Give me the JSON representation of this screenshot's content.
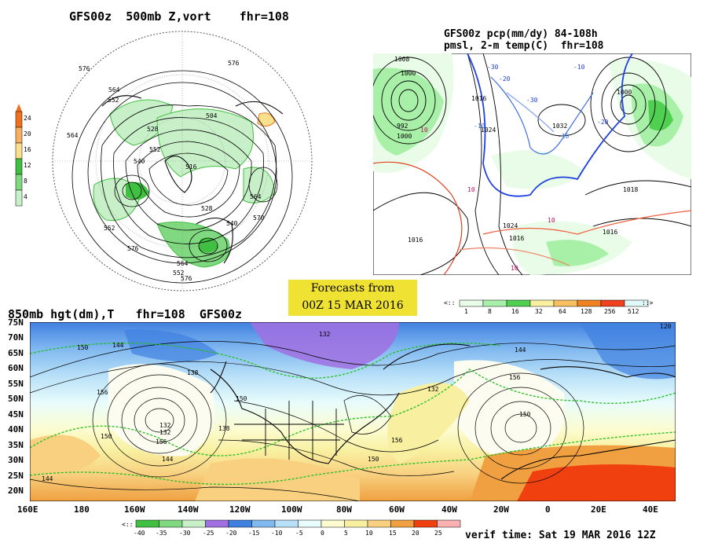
{
  "panel_500mb": {
    "title": "GFS00z  500mb Z,vort    fhr=108",
    "contour_labels": [
      "576",
      "564",
      "552",
      "564",
      "528",
      "540",
      "504",
      "516",
      "552",
      "528",
      "540",
      "552",
      "576",
      "564",
      "576",
      "564",
      "552",
      "570",
      "576"
    ],
    "scale_labels": [
      "24",
      "20",
      "16",
      "12",
      "8",
      "4"
    ],
    "scale_colors": [
      "#f07020",
      "#f8b060",
      "#f8e08c",
      "#40c040",
      "#80d880",
      "#c8f0c8"
    ]
  },
  "panel_pcp": {
    "title_line1": "GFS00z pcp(mm/dy) 84-108h",
    "title_line2": "pmsl, 2-m temp(C)  fhr=108",
    "isobar_labels": [
      "1008",
      "1000",
      "992",
      "1000",
      "1016",
      "1024",
      "1032",
      "1000",
      "1016",
      "1016",
      "1024",
      "1016",
      "1018"
    ],
    "temp_labels": [
      "-30",
      "-20",
      "-10",
      "-10",
      "10",
      "10",
      "10",
      "-30",
      "-20",
      "-10",
      "10"
    ],
    "scale_labels": [
      "1",
      "8",
      "16",
      "32",
      "64",
      "128",
      "256",
      "512"
    ],
    "scale_colors": [
      "#e8fce8",
      "#a8f0a8",
      "#50d050",
      "#f8f0a0",
      "#f8c060",
      "#f08020",
      "#f04020",
      "#e0f8f8"
    ]
  },
  "banner": {
    "line1": "Forecasts from",
    "line2": "00Z 15 MAR 2016"
  },
  "panel_850mb": {
    "title": "850mb hgt(dm),T   fhr=108  GFS00z",
    "lat_labels": [
      "75N",
      "70N",
      "65N",
      "60N",
      "55N",
      "50N",
      "45N",
      "40N",
      "35N",
      "30N",
      "25N",
      "20N"
    ],
    "lon_labels": [
      "160E",
      "180",
      "160W",
      "140W",
      "120W",
      "100W",
      "80W",
      "60W",
      "40W",
      "20W",
      "0",
      "20E",
      "40E"
    ],
    "height_labels": [
      "144",
      "132",
      "150",
      "138",
      "156",
      "150",
      "132",
      "144",
      "150",
      "156",
      "150",
      "144",
      "120",
      "156",
      "150",
      "144",
      "132",
      "138",
      "156",
      "132"
    ],
    "scale_labels": [
      "-40",
      "-35",
      "-30",
      "-25",
      "-20",
      "-15",
      "-10",
      "-5",
      "0",
      "5",
      "10",
      "15",
      "20",
      "25"
    ],
    "scale_colors": [
      "#40c040",
      "#80d880",
      "#c8f0c8",
      "#a070e0",
      "#4080e0",
      "#80b8f0",
      "#b8e0f8",
      "#e8fcfc",
      "#fcfcd0",
      "#f8f0a0",
      "#f8d080",
      "#f0a040",
      "#f04010",
      "#f8b0b0"
    ]
  },
  "verif": "verif time: Sat 19 MAR 2016 12Z"
}
